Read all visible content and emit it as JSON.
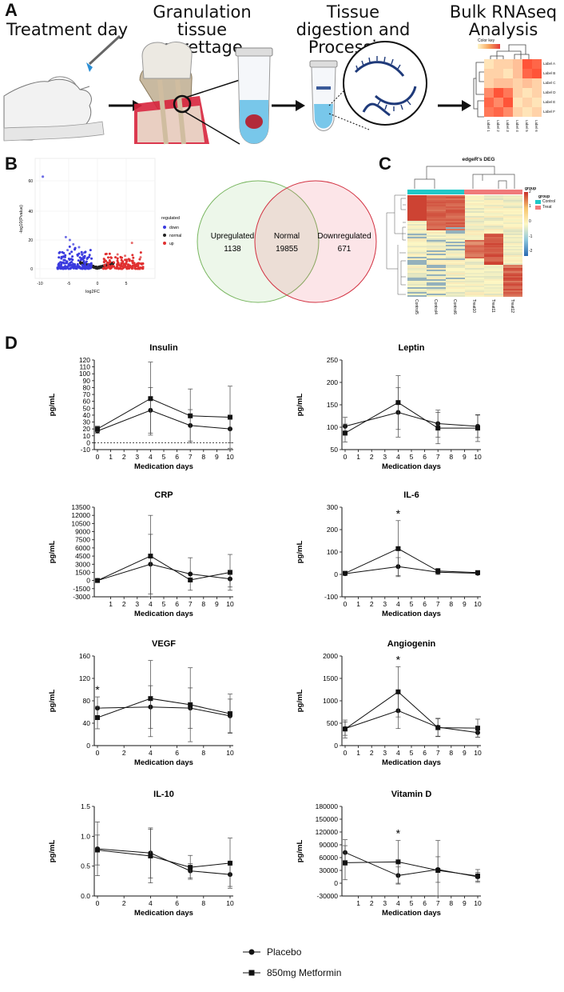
{
  "panelA": {
    "letter": "A",
    "steps": [
      {
        "title": "Treatment day"
      },
      {
        "title": "Granulation tissue curettage"
      },
      {
        "title": "Tissue digestion and Processing"
      },
      {
        "title": "Bulk RNAseq Analysis"
      }
    ],
    "heatmap": {
      "color_key_label": "Color key",
      "row_labels": [
        "Label A",
        "Label B",
        "Label C",
        "Label D",
        "Label E",
        "Label F"
      ],
      "col_labels": [
        "Label 1",
        "Label 2",
        "Label 3",
        "Label 4",
        "Label 5",
        "Label 6"
      ],
      "values": [
        [
          0.1,
          0.2,
          0.2,
          0.3,
          0.9,
          0.8
        ],
        [
          0.2,
          0.2,
          0.1,
          0.3,
          0.8,
          0.9
        ],
        [
          0.2,
          0.3,
          0.3,
          0.2,
          0.3,
          0.2
        ],
        [
          0.6,
          0.9,
          0.7,
          0.2,
          0.1,
          0.2
        ],
        [
          0.8,
          0.6,
          0.9,
          0.1,
          0.2,
          0.1
        ],
        [
          0.7,
          0.8,
          0.6,
          0.2,
          0.1,
          0.2
        ]
      ]
    }
  },
  "panelB": {
    "letter": "B",
    "volcano": {
      "ylabel": "-log10(Pvalue)",
      "xlabel": "log2FC",
      "xticks": [
        "-10",
        "-5",
        "0",
        "5"
      ],
      "yticks": [
        "0",
        "20",
        "40",
        "60"
      ],
      "legend_title": "regulated",
      "legend": [
        {
          "label": "down",
          "color": "#3a3adf"
        },
        {
          "label": "normal",
          "color": "#222222"
        },
        {
          "label": "up",
          "color": "#e03030"
        }
      ]
    },
    "venn": {
      "left_label": "Upregulated",
      "left_count": "1138",
      "middle_label": "Normal",
      "middle_count": "19855",
      "right_label": "Downregulated",
      "right_count": "671"
    }
  },
  "panelC": {
    "letter": "C",
    "title": "edgeR's DEG",
    "columns": [
      "Control5",
      "Control4",
      "Control6",
      "Treat10",
      "Treat11",
      "Treat12"
    ],
    "legend_title": "group",
    "legend_group_label": "group",
    "legend_items": [
      {
        "label": "Control",
        "color": "#1fc8c8"
      },
      {
        "label": "Treat",
        "color": "#f07a7a"
      }
    ],
    "scale_ticks": [
      "2",
      "1",
      "0",
      "-1",
      "-2"
    ]
  },
  "panelD": {
    "letter": "D",
    "series_names": [
      "Placebo",
      "850mg Metformin"
    ],
    "x_label": "Medication days",
    "y_label": "pg/mL",
    "charts": [
      {
        "title": "Insulin",
        "xticks": [
          "0",
          "1",
          "2",
          "3",
          "4",
          "5",
          "6",
          "7",
          "8",
          "9",
          "10"
        ],
        "yticks": [
          "-10",
          "0",
          "10",
          "20",
          "30",
          "40",
          "50",
          "60",
          "70",
          "80",
          "90",
          "100",
          "110",
          "120"
        ],
        "ylim": [
          -10,
          120
        ],
        "dashed_zero": true,
        "x": [
          0,
          4,
          7,
          10
        ],
        "placebo": [
          17,
          47,
          25,
          20
        ],
        "placebo_err": [
          3,
          33,
          23,
          20
        ],
        "metformin": [
          20,
          64,
          39,
          37
        ],
        "metformin_err": [
          4,
          53,
          39,
          45
        ],
        "star": null
      },
      {
        "title": "Leptin",
        "xticks": [
          "0",
          "1",
          "2",
          "3",
          "4",
          "5",
          "6",
          "7",
          "8",
          "9",
          "10"
        ],
        "yticks": [
          "50",
          "100",
          "150",
          "200",
          "250"
        ],
        "ylim": [
          50,
          250
        ],
        "dashed_zero": false,
        "x": [
          0,
          4,
          7,
          10
        ],
        "placebo": [
          102,
          133,
          108,
          102
        ],
        "placebo_err": [
          20,
          55,
          30,
          25
        ],
        "metformin": [
          87,
          155,
          98,
          98
        ],
        "metformin_err": [
          20,
          60,
          35,
          30
        ],
        "star": null
      },
      {
        "title": "CRP",
        "xticks": [
          "1",
          "2",
          "3",
          "4",
          "5",
          "6",
          "7",
          "8",
          "9",
          "10"
        ],
        "xticks_from": 1,
        "yticks": [
          "-3000",
          "-1500",
          "0",
          "1500",
          "3000",
          "4500",
          "6000",
          "7500",
          "9000",
          "10500",
          "12000",
          "13500"
        ],
        "ylim": [
          -3000,
          13500
        ],
        "dashed_zero": false,
        "x": [
          0,
          4,
          7,
          10
        ],
        "placebo": [
          0,
          3000,
          1200,
          300
        ],
        "placebo_err": [
          50,
          5500,
          3000,
          1500
        ],
        "metformin": [
          0,
          4500,
          100,
          1500
        ],
        "metformin_err": [
          50,
          7500,
          200,
          3300
        ],
        "star": null
      },
      {
        "title": "IL-6",
        "xticks": [
          "0",
          "1",
          "2",
          "3",
          "4",
          "5",
          "6",
          "7",
          "8",
          "9",
          "10"
        ],
        "yticks": [
          "-100",
          "0",
          "100",
          "200",
          "300"
        ],
        "ylim": [
          -100,
          300
        ],
        "dashed_zero": false,
        "x": [
          0,
          4,
          7,
          10
        ],
        "placebo": [
          3,
          35,
          10,
          5
        ],
        "placebo_err": [
          3,
          40,
          10,
          5
        ],
        "metformin": [
          5,
          115,
          15,
          8
        ],
        "metformin_err": [
          5,
          125,
          12,
          8
        ],
        "star": {
          "x": 4,
          "label": "*"
        }
      },
      {
        "title": "VEGF",
        "xticks": [
          "0",
          "2",
          "4",
          "6",
          "8",
          "10"
        ],
        "yticks": [
          "0",
          "40",
          "80",
          "120",
          "160"
        ],
        "ylim": [
          0,
          160
        ],
        "dashed_zero": false,
        "x": [
          0,
          4,
          7,
          10
        ],
        "placebo": [
          67,
          69,
          67,
          53
        ],
        "placebo_err": [
          20,
          38,
          36,
          30
        ],
        "metformin": [
          50,
          84,
          73,
          57
        ],
        "metformin_err": [
          20,
          68,
          66,
          35
        ],
        "star": {
          "x": 0,
          "label": "*"
        }
      },
      {
        "title": "Angiogenin",
        "xticks": [
          "0",
          "1",
          "2",
          "3",
          "4",
          "5",
          "6",
          "7",
          "8",
          "9",
          "10"
        ],
        "yticks": [
          "0",
          "500",
          "1000",
          "1500",
          "2000"
        ],
        "ylim": [
          0,
          2000
        ],
        "dashed_zero": false,
        "x": [
          0,
          4,
          7,
          10
        ],
        "placebo": [
          380,
          780,
          410,
          290
        ],
        "placebo_err": [
          150,
          400,
          200,
          100
        ],
        "metformin": [
          370,
          1200,
          400,
          390
        ],
        "metformin_err": [
          200,
          560,
          200,
          200
        ],
        "star": {
          "x": 4,
          "label": "*"
        }
      },
      {
        "title": "IL-10",
        "xticks": [
          "0",
          "2",
          "4",
          "6",
          "8",
          "10"
        ],
        "yticks": [
          "0.0",
          "0.5",
          "1.0",
          "1.5"
        ],
        "ylim": [
          0,
          1.5
        ],
        "dashed_zero": false,
        "x": [
          0,
          4,
          7,
          10
        ],
        "placebo": [
          0.79,
          0.72,
          0.42,
          0.36
        ],
        "placebo_err": [
          0.45,
          0.42,
          0.12,
          0.2
        ],
        "metformin": [
          0.77,
          0.67,
          0.48,
          0.55
        ],
        "metformin_err": [
          0.25,
          0.45,
          0.2,
          0.42
        ],
        "star": null
      },
      {
        "title": "Vitamin D",
        "xticks": [
          "1",
          "2",
          "3",
          "4",
          "5",
          "6",
          "7",
          "8",
          "9",
          "10"
        ],
        "xticks_from": 1,
        "yticks": [
          "-30000",
          "0",
          "30000",
          "60000",
          "90000",
          "120000",
          "150000",
          "180000"
        ],
        "ylim": [
          -30000,
          180000
        ],
        "dashed_zero": false,
        "x": [
          0,
          4,
          7,
          10
        ],
        "placebo": [
          72000,
          18000,
          32000,
          15000
        ],
        "placebo_err": [
          30000,
          20000,
          30000,
          10000
        ],
        "metformin": [
          48000,
          50000,
          30000,
          17000
        ],
        "metformin_err": [
          40000,
          50000,
          70000,
          15000
        ],
        "star": {
          "x": 4,
          "label": "*"
        }
      }
    ]
  }
}
